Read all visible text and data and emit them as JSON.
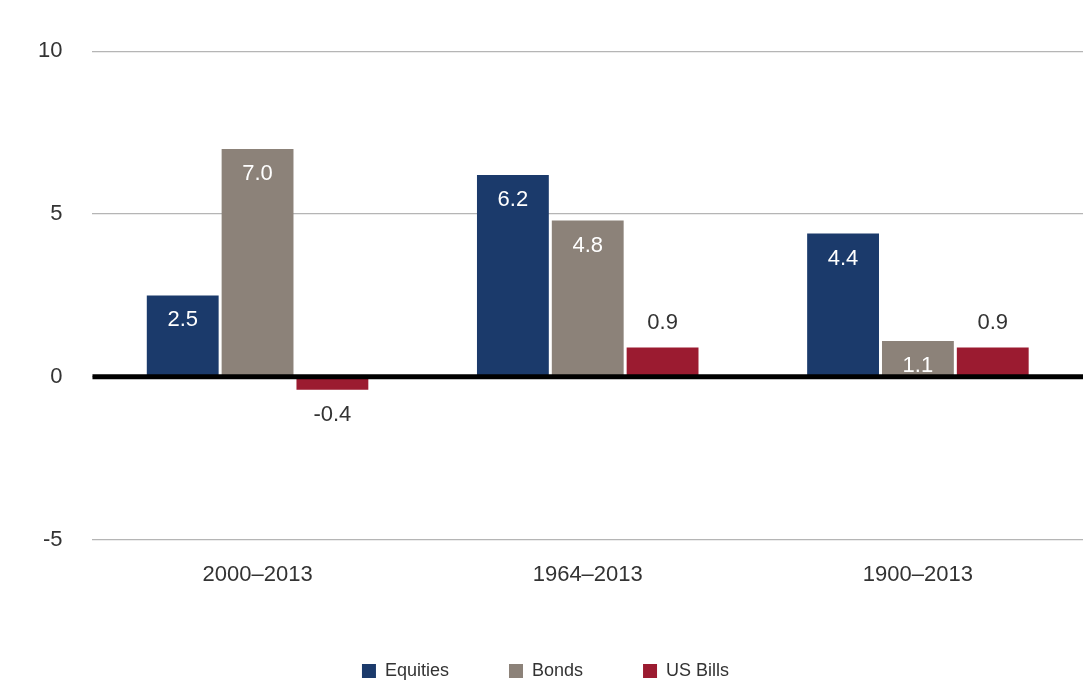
{
  "chart_data": {
    "type": "bar",
    "categories": [
      "2000–2013",
      "1964–2013",
      "1900–2013"
    ],
    "series": [
      {
        "name": "Equities",
        "color": "#1b3a6b",
        "values": [
          2.5,
          6.2,
          4.4
        ],
        "value_labels": [
          "2.5",
          "6.2",
          "4.4"
        ]
      },
      {
        "name": "Bonds",
        "color": "#8c8279",
        "values": [
          7.0,
          4.8,
          1.1
        ],
        "value_labels": [
          "7.0",
          "4.8",
          "1.1"
        ]
      },
      {
        "name": "US Bills",
        "color": "#9b1b30",
        "values": [
          -0.4,
          0.9,
          0.9
        ],
        "value_labels": [
          "-0.4",
          "0.9",
          "0.9"
        ]
      }
    ],
    "ylim": [
      -5,
      10
    ],
    "yticks": [
      -5,
      0,
      5,
      10
    ],
    "grid": "y",
    "legend": "bottom",
    "ref_lines": [
      {
        "axis": "y",
        "value": 0,
        "color": "#000000"
      }
    ]
  }
}
